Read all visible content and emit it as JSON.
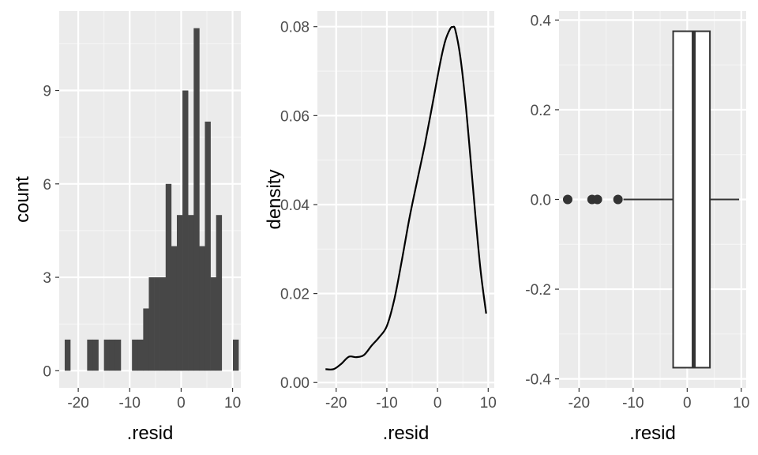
{
  "colors": {
    "panel_background": "#ebebeb",
    "grid_major": "#ffffff",
    "grid_minor": "#f5f5f5",
    "bar_fill": "#474747",
    "line": "#000000",
    "axis_text": "#4d4d4d",
    "box_fill": "#ffffff",
    "box_stroke": "#333333",
    "outlier": "#333333"
  },
  "chart_data": [
    {
      "type": "bar",
      "subtype": "histogram",
      "xlabel": ".resid",
      "ylabel": "count",
      "xlim": [
        -23.7,
        11.6
      ],
      "ylim": [
        -0.55,
        11.55
      ],
      "x_ticks": [
        -20,
        -10,
        0,
        10
      ],
      "x_tick_labels": [
        "-20",
        "-10",
        "0",
        "10"
      ],
      "y_ticks": [
        0,
        3,
        6,
        9
      ],
      "y_tick_labels": [
        "0",
        "3",
        "6",
        "9"
      ],
      "bin_width": 1.09,
      "bin_centers": [
        -22.09,
        -21.0,
        -19.91,
        -18.82,
        -17.73,
        -16.64,
        -15.55,
        -14.46,
        -13.37,
        -12.28,
        -11.19,
        -10.1,
        -9.01,
        -7.92,
        -6.83,
        -5.74,
        -4.65,
        -3.56,
        -2.47,
        -1.38,
        -0.29,
        0.8,
        1.89,
        2.98,
        4.07,
        5.16,
        6.25,
        7.34,
        8.43,
        9.52,
        10.61
      ],
      "values": [
        1,
        0,
        0,
        0,
        1,
        1,
        0,
        1,
        1,
        1,
        0,
        0,
        1,
        1,
        2,
        3,
        3,
        3,
        6,
        4,
        5,
        9,
        5,
        11,
        4,
        8,
        3,
        5,
        0,
        0,
        1
      ],
      "grid": true
    },
    {
      "type": "line",
      "subtype": "density",
      "xlabel": ".resid",
      "ylabel": "density",
      "xlim": [
        -23.7,
        11.2
      ],
      "ylim": [
        -0.0012,
        0.0835
      ],
      "x_ticks": [
        -20,
        -10,
        0,
        10
      ],
      "x_tick_labels": [
        "-20",
        "-10",
        "0",
        "10"
      ],
      "y_ticks": [
        0,
        0.02,
        0.04,
        0.06,
        0.08
      ],
      "y_tick_labels": [
        "0.00",
        "0.02",
        "0.04",
        "0.06",
        "0.08"
      ],
      "x": [
        -22.1,
        -20.5,
        -19.0,
        -17.5,
        -16.0,
        -14.5,
        -13.0,
        -11.5,
        -10.0,
        -8.5,
        -7.0,
        -5.5,
        -4.0,
        -2.5,
        -1.0,
        0.5,
        1.5,
        2.5,
        3.0,
        3.5,
        4.5,
        5.5,
        6.5,
        7.5,
        8.5,
        9.6
      ],
      "y": [
        0.003,
        0.003,
        0.0042,
        0.0058,
        0.0057,
        0.0062,
        0.0083,
        0.0102,
        0.0127,
        0.0188,
        0.0277,
        0.0372,
        0.0454,
        0.0535,
        0.0625,
        0.0717,
        0.0767,
        0.0795,
        0.0799,
        0.0793,
        0.0732,
        0.0632,
        0.0505,
        0.0372,
        0.0252,
        0.0155
      ],
      "grid": true
    },
    {
      "type": "boxplot",
      "orientation": "horizontal",
      "xlabel": ".resid",
      "ylabel": "",
      "xlim": [
        -23.7,
        10.9
      ],
      "ylim": [
        -0.42,
        0.42
      ],
      "x_ticks": [
        -20,
        -10,
        0,
        10
      ],
      "x_tick_labels": [
        "-20",
        "-10",
        "0",
        "10"
      ],
      "y_ticks": [
        -0.4,
        -0.2,
        0.0,
        0.2,
        0.4
      ],
      "y_tick_labels": [
        "-0.4",
        "-0.2",
        "0.0",
        "0.2",
        "0.4"
      ],
      "box": {
        "lower_whisker": -11.8,
        "q1": -2.6,
        "median": 1.2,
        "q3": 4.2,
        "upper_whisker": 9.6,
        "ymin": -0.375,
        "ymax": 0.375
      },
      "outliers": [
        -22.1,
        -17.6,
        -16.6,
        -12.8
      ],
      "grid": true
    }
  ]
}
